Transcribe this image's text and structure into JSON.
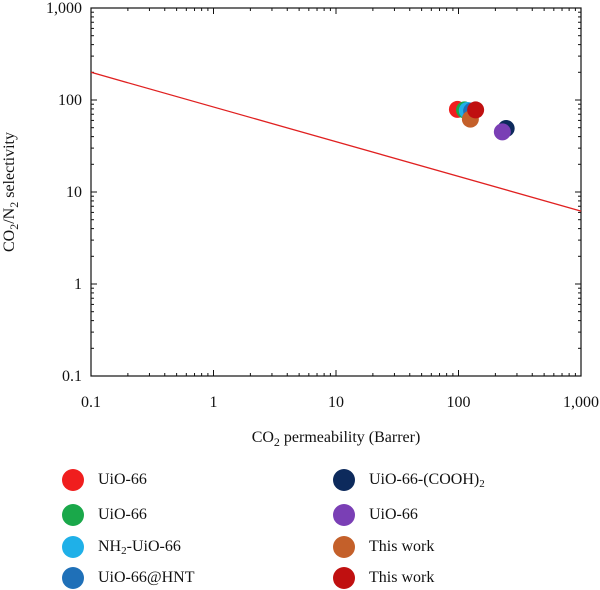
{
  "chart_data": {
    "type": "scatter",
    "xlabel": {
      "pre": "CO",
      "sub": "2",
      "post": " permeability (Barrer)"
    },
    "ylabel": {
      "a": "CO",
      "sub1": "2",
      "b": "/N",
      "sub2": "2",
      "c": " selectivity"
    },
    "x_scale": "log",
    "y_scale": "log",
    "xlim": [
      0.1,
      1000
    ],
    "ylim": [
      0.1,
      1000
    ],
    "x_ticks": [
      0.1,
      1,
      10,
      100,
      1000
    ],
    "x_tick_labels": [
      "0.1",
      "1",
      "10",
      "100",
      "1,000"
    ],
    "y_ticks": [
      0.1,
      1,
      10,
      100,
      1000
    ],
    "y_tick_labels": [
      "0.1",
      "1",
      "10",
      "100",
      "1,000"
    ],
    "grid": false,
    "upper_bound_line": {
      "color": "#e02020",
      "x": [
        0.1,
        1000
      ],
      "y": [
        200,
        6.2
      ]
    },
    "series": [
      {
        "name": "UiO-66",
        "color": "#f01e1e",
        "x": [
          98
        ],
        "y": [
          79
        ]
      },
      {
        "name": "UiO-66",
        "color": "#1aa84a",
        "x": [
          112
        ],
        "y": [
          78
        ]
      },
      {
        "name": {
          "pre": "NH",
          "sub": "2",
          "post": "-UiO-66"
        },
        "color": "#1fb0e8",
        "x": [
          118
        ],
        "y": [
          77
        ]
      },
      {
        "name": "UiO-66@HNT",
        "color": "#1f70b8",
        "x": [
          128
        ],
        "y": [
          76
        ]
      },
      {
        "name": {
          "pre": "UiO-66-(COOH)",
          "sub": "2",
          "post": ""
        },
        "color": "#0d2a5c",
        "x": [
          245
        ],
        "y": [
          49
        ]
      },
      {
        "name": "UiO-66",
        "color": "#7a3fb5",
        "x": [
          228
        ],
        "y": [
          45
        ]
      },
      {
        "name": "This work",
        "color": "#c4602a",
        "x": [
          125
        ],
        "y": [
          62
        ]
      },
      {
        "name": "This work",
        "color": "#c01010",
        "x": [
          138
        ],
        "y": [
          78
        ]
      }
    ],
    "legend_placement": "bottom"
  }
}
